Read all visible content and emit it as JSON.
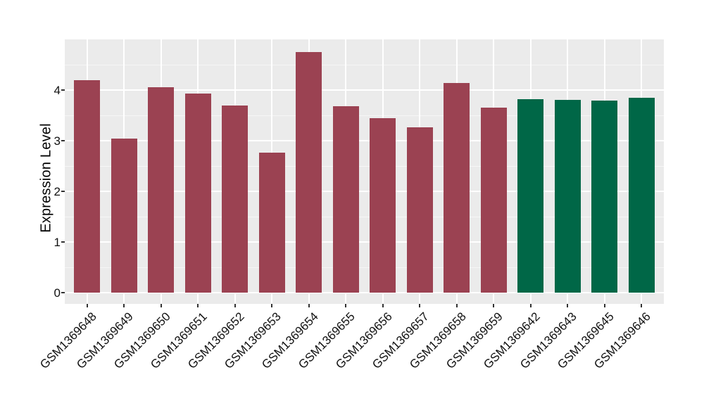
{
  "figure": {
    "background": "#FFFFFF",
    "panel_background": "#EBEBEB",
    "gridline_color": "#FFFFFF",
    "tick_color": "#333333",
    "axis_text_color": "#111111"
  },
  "chart_data": {
    "type": "bar",
    "title": "",
    "xlabel": "",
    "ylabel": "Expression Level",
    "categories": [
      "GSM1369648",
      "GSM1369649",
      "GSM1369650",
      "GSM1369651",
      "GSM1369652",
      "GSM1369653",
      "GSM1369654",
      "GSM1369655",
      "GSM1369656",
      "GSM1369657",
      "GSM1369658",
      "GSM1369659",
      "GSM1369642",
      "GSM1369643",
      "GSM1369645",
      "GSM1369646"
    ],
    "values": [
      4.19,
      3.04,
      4.06,
      3.93,
      3.7,
      2.76,
      4.75,
      3.68,
      3.44,
      3.27,
      4.14,
      3.66,
      3.82,
      3.8,
      3.79,
      3.85
    ],
    "bar_colors": [
      "#9B4252",
      "#9B4252",
      "#9B4252",
      "#9B4252",
      "#9B4252",
      "#9B4252",
      "#9B4252",
      "#9B4252",
      "#9B4252",
      "#9B4252",
      "#9B4252",
      "#9B4252",
      "#006747",
      "#006747",
      "#006747",
      "#006747"
    ],
    "groups": [
      {
        "name": "group-red",
        "color": "#9B4252",
        "samples": [
          "GSM1369648",
          "GSM1369649",
          "GSM1369650",
          "GSM1369651",
          "GSM1369652",
          "GSM1369653",
          "GSM1369654",
          "GSM1369655",
          "GSM1369656",
          "GSM1369657",
          "GSM1369658",
          "GSM1369659"
        ]
      },
      {
        "name": "group-green",
        "color": "#006747",
        "samples": [
          "GSM1369642",
          "GSM1369643",
          "GSM1369645",
          "GSM1369646"
        ]
      }
    ],
    "yticks": [
      0,
      1,
      2,
      3,
      4
    ],
    "yticks_minor": [
      0.5,
      1.5,
      2.5,
      3.5,
      4.5
    ],
    "ylim": [
      -0.24,
      5.0
    ],
    "grid": "on",
    "legend": "none",
    "x_label_angle": 45
  }
}
